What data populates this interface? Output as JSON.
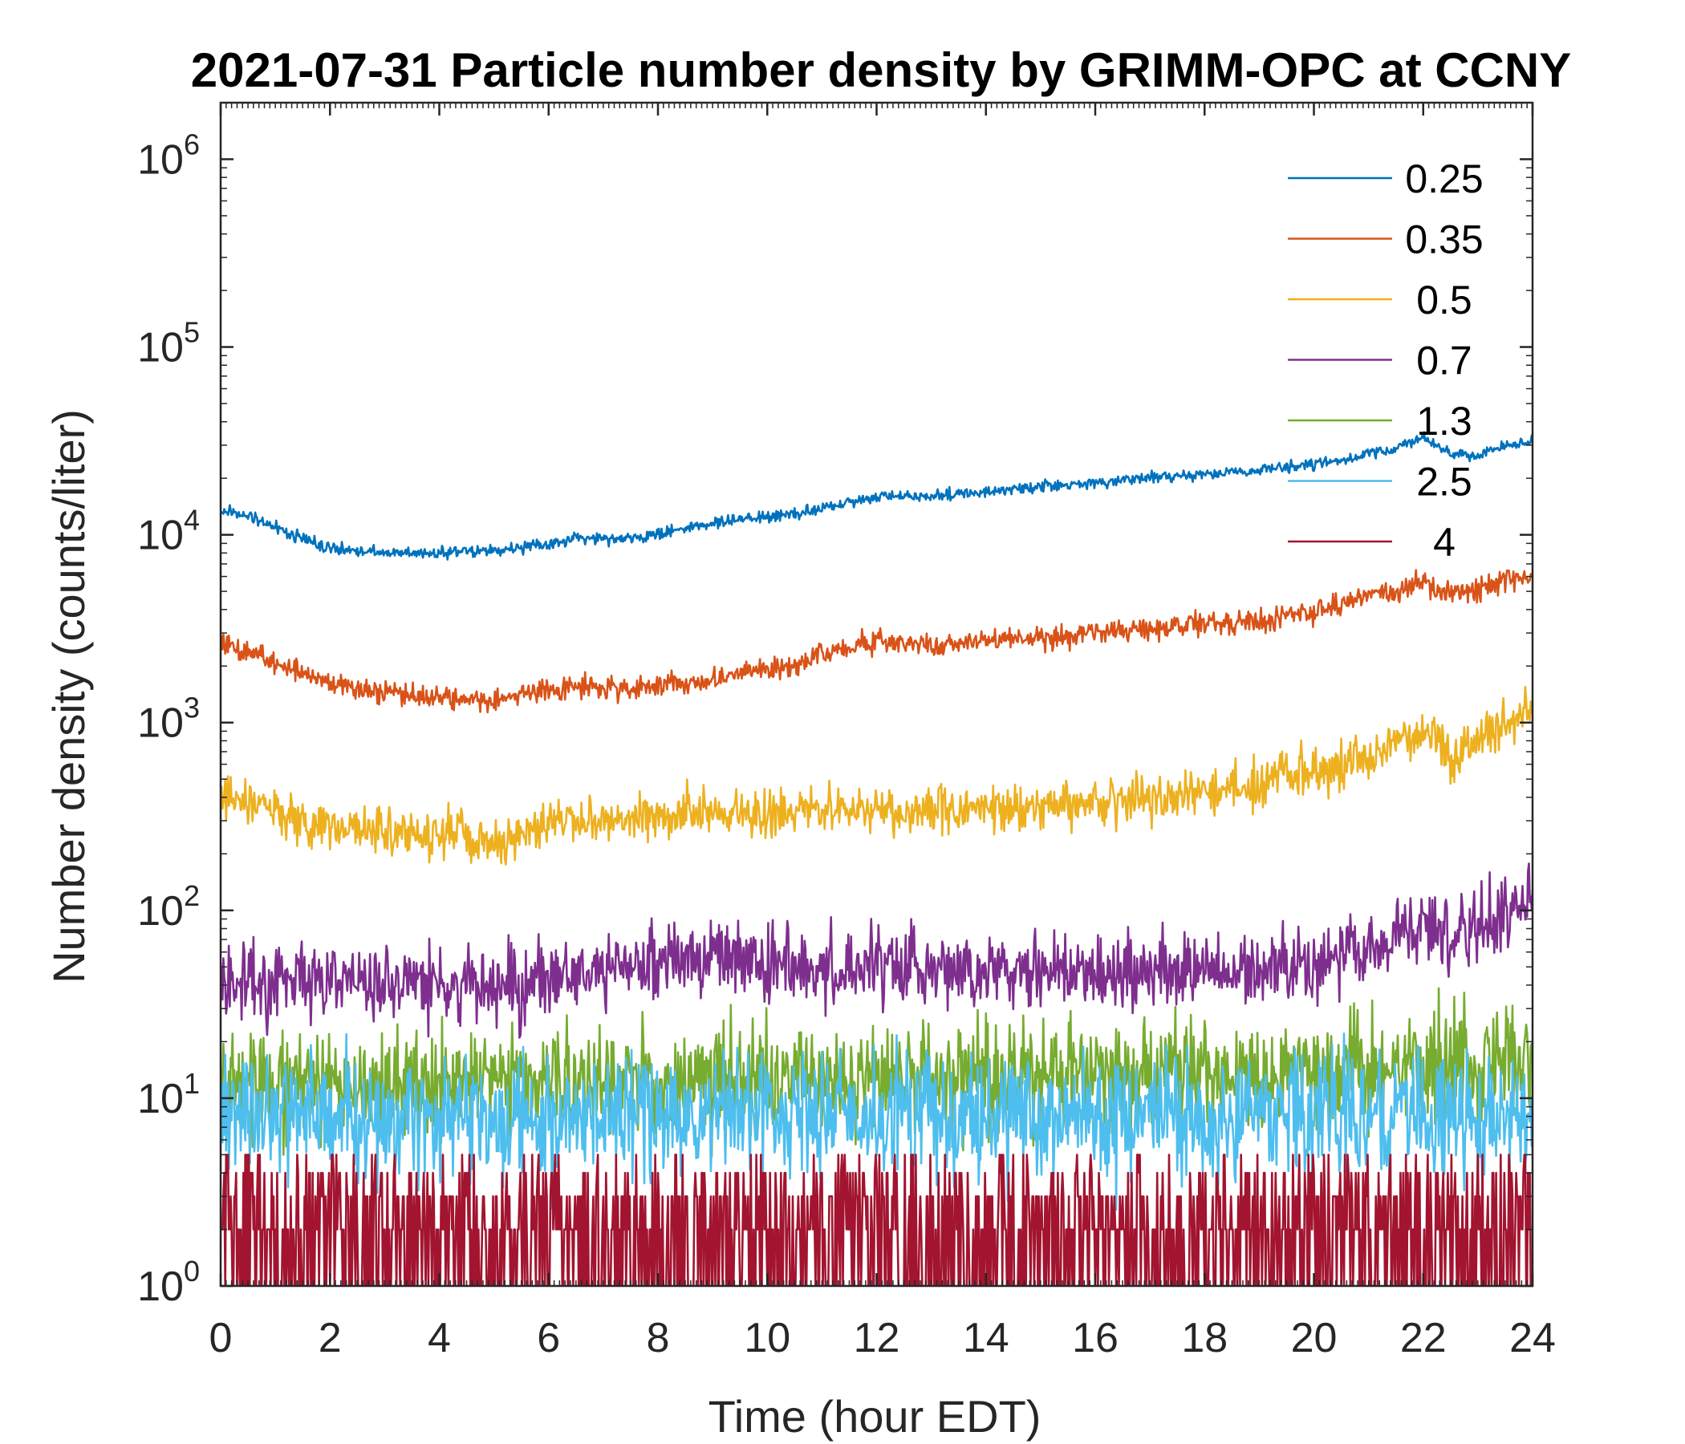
{
  "chart_data": {
    "type": "line",
    "title": "2021-07-31 Particle number density by GRIMM-OPC at CCNY",
    "xlabel": "Time (hour EDT)",
    "ylabel": "Number density (counts/liter)",
    "xlim": [
      0,
      24
    ],
    "ylim": [
      1,
      2000000
    ],
    "yscale": "log",
    "xticks": [
      "0",
      "2",
      "4",
      "6",
      "8",
      "10",
      "12",
      "14",
      "16",
      "18",
      "20",
      "22",
      "24"
    ],
    "yticks": [
      {
        "base": "10",
        "exp": "0"
      },
      {
        "base": "10",
        "exp": "1"
      },
      {
        "base": "10",
        "exp": "2"
      },
      {
        "base": "10",
        "exp": "3"
      },
      {
        "base": "10",
        "exp": "4"
      },
      {
        "base": "10",
        "exp": "5"
      },
      {
        "base": "10",
        "exp": "6"
      }
    ],
    "grid": false,
    "legend_position": "top-right",
    "series": [
      {
        "name": "0.25",
        "color": "#0072BD",
        "noise": 0.03,
        "x": [
          0,
          0.5,
          1,
          1.5,
          2,
          2.5,
          3,
          3.5,
          4,
          4.5,
          5,
          5.5,
          6,
          6.5,
          7,
          7.5,
          8,
          8.5,
          9,
          9.5,
          10,
          10.5,
          11,
          11.5,
          12,
          12.5,
          13,
          13.5,
          14,
          14.5,
          15,
          15.5,
          16,
          16.5,
          17,
          17.5,
          18,
          18.5,
          19,
          19.5,
          20,
          20.5,
          21,
          21.5,
          22,
          22.5,
          23,
          23.5,
          24
        ],
        "y": [
          13500,
          12500,
          11000,
          9500,
          8500,
          8200,
          8000,
          8000,
          8000,
          8200,
          8300,
          8500,
          9000,
          9500,
          9500,
          9500,
          10000,
          11000,
          11500,
          12000,
          12500,
          13000,
          14000,
          15000,
          16000,
          16000,
          16000,
          16500,
          17000,
          17500,
          18000,
          18500,
          19000,
          19500,
          20000,
          20500,
          21000,
          21500,
          22000,
          23000,
          24000,
          25000,
          27000,
          29000,
          33000,
          27000,
          26000,
          30000,
          31000
        ]
      },
      {
        "name": "0.35",
        "color": "#D95319",
        "noise": 0.06,
        "x": [
          0,
          0.5,
          1,
          1.5,
          2,
          2.5,
          3,
          3.5,
          4,
          4.5,
          5,
          5.5,
          6,
          6.5,
          7,
          7.5,
          8,
          8.5,
          9,
          9.5,
          10,
          10.5,
          11,
          11.5,
          12,
          12.5,
          13,
          13.5,
          14,
          14.5,
          15,
          15.5,
          16,
          16.5,
          17,
          17.5,
          18,
          18.5,
          19,
          19.5,
          20,
          20.5,
          21,
          21.5,
          22,
          22.5,
          23,
          23.5,
          24
        ],
        "y": [
          2600,
          2400,
          2100,
          1800,
          1600,
          1500,
          1450,
          1400,
          1350,
          1350,
          1300,
          1400,
          1500,
          1550,
          1550,
          1500,
          1550,
          1650,
          1700,
          1800,
          1900,
          2000,
          2300,
          2500,
          2700,
          2600,
          2550,
          2600,
          2700,
          2750,
          2800,
          2900,
          3000,
          3100,
          3200,
          3250,
          3300,
          3400,
          3500,
          3700,
          3900,
          4200,
          4700,
          5000,
          5600,
          4800,
          5000,
          5800,
          6000
        ]
      },
      {
        "name": "0.5",
        "color": "#EDB120",
        "noise": 0.12,
        "x": [
          0,
          0.5,
          1,
          1.5,
          2,
          2.5,
          3,
          3.5,
          4,
          4.5,
          5,
          5.5,
          6,
          6.5,
          7,
          7.5,
          8,
          8.5,
          9,
          9.5,
          10,
          10.5,
          11,
          11.5,
          12,
          12.5,
          13,
          13.5,
          14,
          14.5,
          15,
          15.5,
          16,
          16.5,
          17,
          17.5,
          18,
          18.5,
          19,
          19.5,
          20,
          20.5,
          21,
          21.5,
          22,
          22.5,
          23,
          23.5,
          24
        ],
        "y": [
          420,
          380,
          330,
          300,
          280,
          280,
          270,
          260,
          250,
          240,
          220,
          260,
          290,
          300,
          310,
          300,
          320,
          330,
          340,
          330,
          330,
          340,
          350,
          350,
          350,
          340,
          340,
          340,
          350,
          350,
          350,
          360,
          370,
          380,
          390,
          400,
          420,
          440,
          460,
          560,
          520,
          580,
          650,
          750,
          950,
          650,
          800,
          1000,
          1150
        ]
      },
      {
        "name": "0.7",
        "color": "#7E2F8E",
        "noise": 0.2,
        "x": [
          0,
          1,
          2,
          3,
          4,
          5,
          6,
          7,
          8,
          9,
          10,
          11,
          12,
          13,
          14,
          15,
          16,
          17,
          18,
          19,
          20,
          21,
          22,
          23,
          24
        ],
        "y": [
          40,
          42,
          43,
          42,
          40,
          38,
          42,
          48,
          55,
          60,
          52,
          50,
          48,
          48,
          48,
          48,
          48,
          48,
          48,
          50,
          55,
          62,
          80,
          80,
          110
        ]
      },
      {
        "name": "1.3",
        "color": "#77AC30",
        "noise": 0.28,
        "x": [
          0,
          4,
          8,
          12,
          16,
          20,
          24
        ],
        "y": [
          12,
          12,
          13,
          13,
          13,
          14,
          16
        ]
      },
      {
        "name": "2.5",
        "color": "#4DBEEE",
        "noise": 0.32,
        "x": [
          0,
          4,
          8,
          12,
          16,
          20,
          24
        ],
        "y": [
          8,
          8,
          8,
          8,
          8,
          8,
          8
        ]
      },
      {
        "name": "4",
        "color": "#A2142F",
        "noise": 0.8,
        "x": [
          0,
          4,
          8,
          12,
          16,
          20,
          24
        ],
        "y": [
          1.6,
          1.6,
          1.6,
          1.6,
          1.6,
          1.6,
          1.6
        ]
      }
    ]
  }
}
